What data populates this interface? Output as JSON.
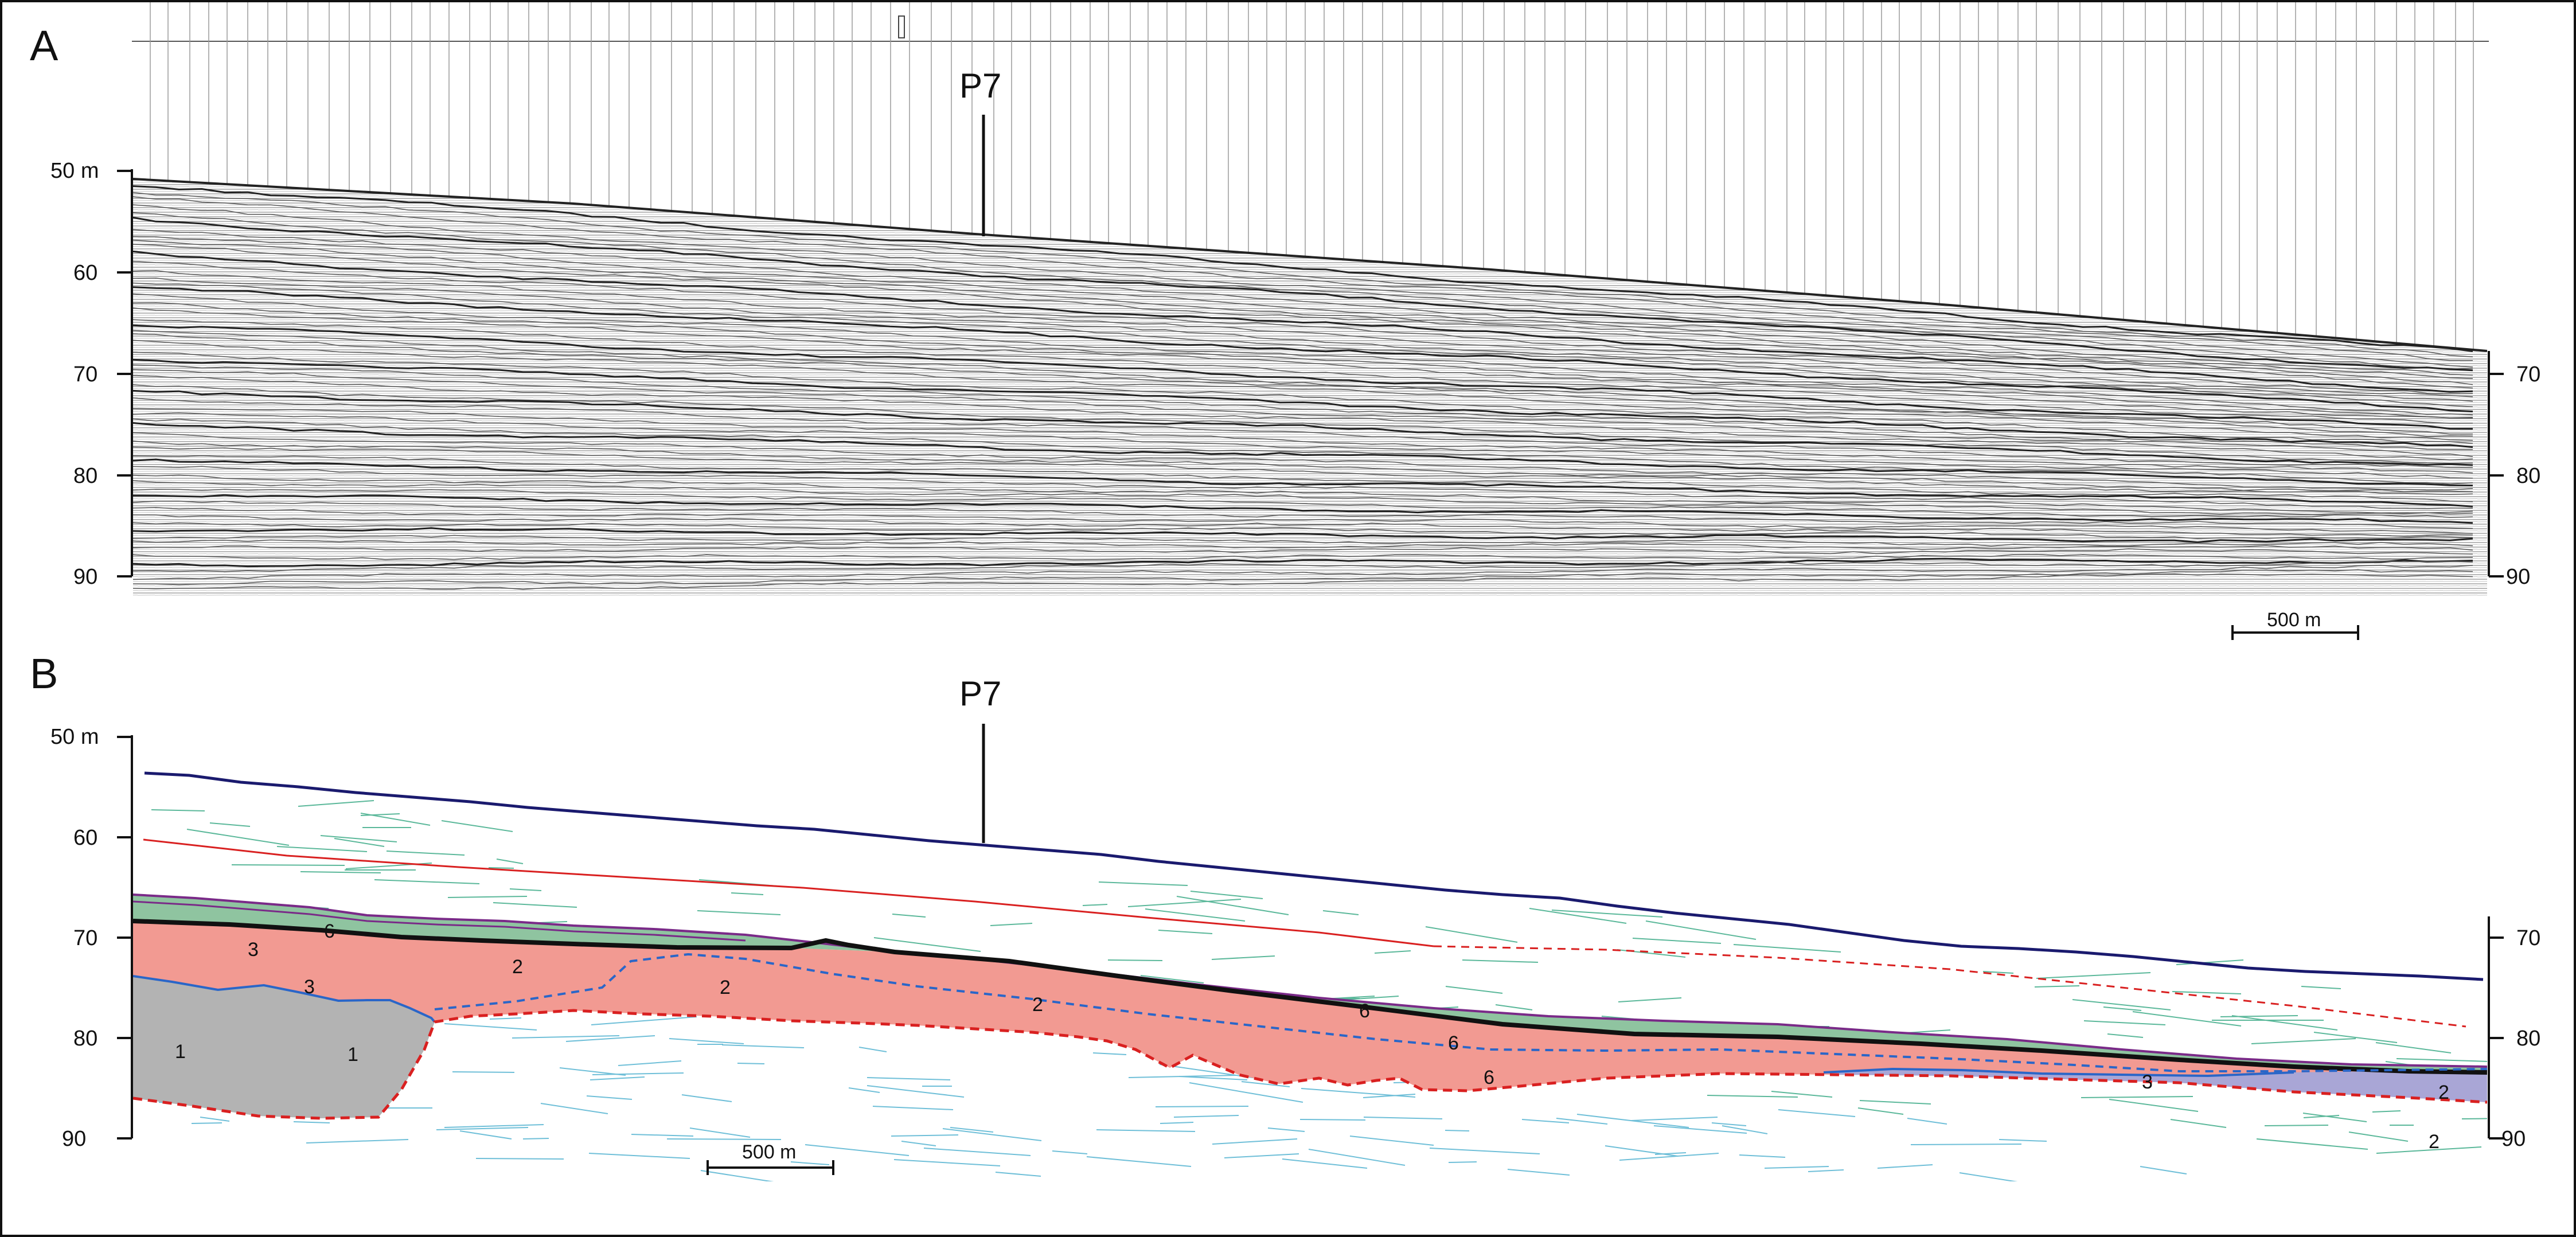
{
  "panel_a": {
    "letter": "A",
    "well": "P7",
    "depth_labels_left": [
      "50 m",
      "60",
      "70",
      "80",
      "90"
    ],
    "depth_labels_right": [
      "70",
      "80",
      "90"
    ],
    "scale_bar": "500 m"
  },
  "panel_b": {
    "letter": "B",
    "well": "P7",
    "depth_labels_left": [
      "50 m",
      "60",
      "70",
      "80",
      "90"
    ],
    "depth_labels_right": [
      "70",
      "80",
      "90"
    ],
    "scale_bar": "500 m",
    "unit_labels": [
      "3",
      "6",
      "2",
      "3",
      "2",
      "2",
      "1",
      "1",
      "6",
      "6",
      "6",
      "3",
      "2",
      "2"
    ]
  },
  "colors": {
    "unit1_fill": "#b3b3b3",
    "unit2_fill": "#f29a92",
    "unit3_fill": "#a9a6d6",
    "unit6_fill": "#8fc4a0",
    "seafloor_line": "#1a1a6e",
    "red_reflector": "#d92020",
    "blue_reflector": "#2a66c8",
    "purple_reflector": "#7a2a88",
    "green_reflector": "#5bb89a",
    "cyan_reflector": "#6fbfd8",
    "frame": "#111111"
  }
}
